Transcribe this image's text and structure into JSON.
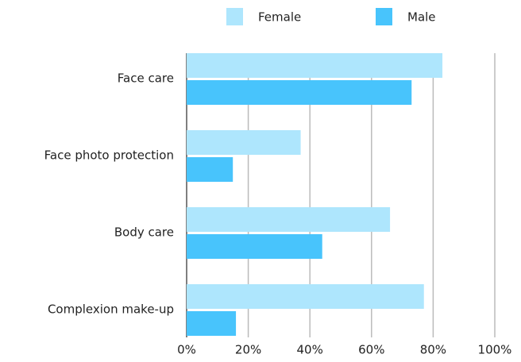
{
  "chart_data": {
    "type": "bar",
    "orientation": "horizontal",
    "categories": [
      "Face care",
      "Face photo protection",
      "Body care",
      "Complexion make-up"
    ],
    "series": [
      {
        "name": "Female",
        "color": "#aee6fd",
        "values": [
          83,
          37,
          66,
          77
        ]
      },
      {
        "name": "Male",
        "color": "#48c4fc",
        "values": [
          73,
          15,
          44,
          16
        ]
      }
    ],
    "xlim": [
      0,
      100
    ],
    "xticks": [
      {
        "value": 0,
        "label": "0%"
      },
      {
        "value": 20,
        "label": "20%"
      },
      {
        "value": 40,
        "label": "40%"
      },
      {
        "value": 60,
        "label": "60%"
      },
      {
        "value": 80,
        "label": "80%"
      },
      {
        "value": 100,
        "label": "100%"
      }
    ],
    "grid": true,
    "legend": "top"
  }
}
